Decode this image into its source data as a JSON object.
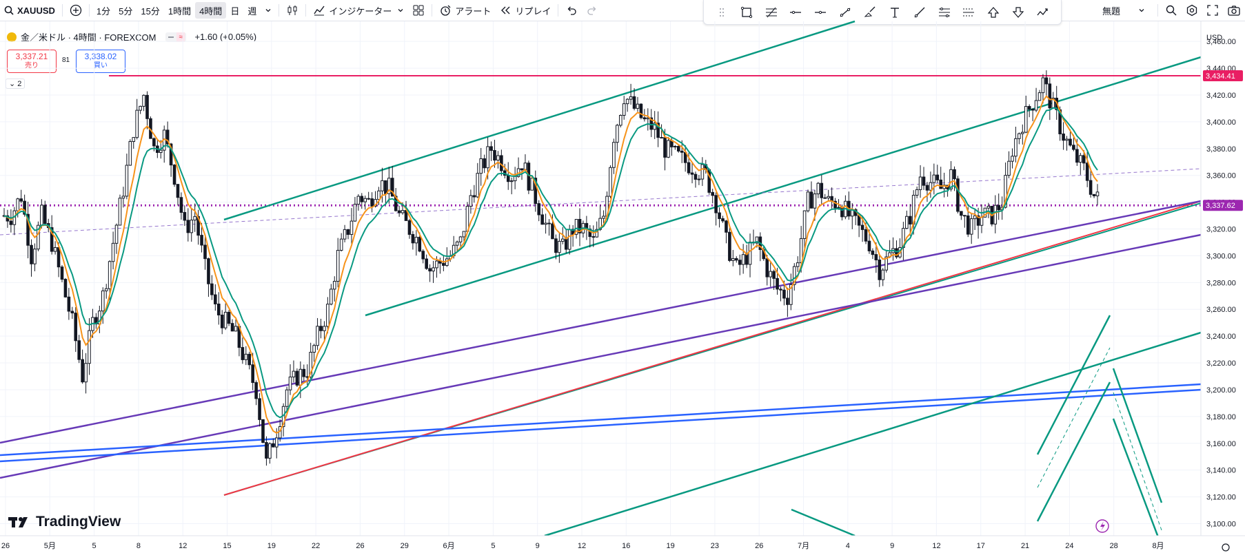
{
  "toolbar": {
    "symbol": "XAUUSD",
    "intervals": [
      "1分",
      "5分",
      "15分",
      "1時間",
      "4時間",
      "日",
      "週"
    ],
    "active_interval": "4時間",
    "indicators_label": "インジケーター",
    "alert_label": "アラート",
    "replay_label": "リプレイ",
    "unnamed_label": "無題"
  },
  "legend": {
    "title": "金／米ドル · 4時間 · FOREXCOM",
    "change": "+1.60 (+0.05%)",
    "sell_price": "3,337.21",
    "sell_label": "売り",
    "buy_price": "3,338.02",
    "buy_label": "買い",
    "spread": "81",
    "collapsed_count": "2"
  },
  "price_scale": {
    "currency": "USD",
    "current_price": "3,337.62",
    "resistance_label": "3,434.41"
  },
  "colors": {
    "up": "#131722",
    "down": "#131722",
    "ema_fast": "#f7931a",
    "ema_slow": "#089981",
    "channel": "#089981",
    "resistance": "#e91e63",
    "purple": "#673ab7",
    "blue": "#2962ff",
    "red": "#f23645",
    "price_label_bg": "#9c27b0"
  },
  "logo_text": "TradingView",
  "chart_data": {
    "type": "line",
    "title": "金／米ドル · 4時間 · FOREXCOM",
    "x_ticks": [
      "26",
      "5月",
      "5",
      "8",
      "12",
      "15",
      "19",
      "22",
      "26",
      "29",
      "6月",
      "5",
      "9",
      "12",
      "16",
      "19",
      "23",
      "26",
      "7月",
      "4",
      "9",
      "12",
      "17",
      "21",
      "24",
      "28",
      "8月"
    ],
    "y_ticks": [
      3100,
      3120,
      3140,
      3160,
      3180,
      3200,
      3220,
      3240,
      3260,
      3280,
      3300,
      3320,
      3340,
      3360,
      3380,
      3400,
      3420,
      3440,
      3460
    ],
    "ylim": [
      3091,
      3475
    ],
    "last_price": 3337.62,
    "resistance": 3434.41,
    "series": [
      {
        "values": [
          3330,
          3345,
          3300,
          3330,
          3310,
          3280,
          3250,
          3210,
          3250,
          3270,
          3310,
          3350,
          3395,
          3420,
          3380,
          3390,
          3360,
          3320,
          3330,
          3290,
          3260,
          3250,
          3240,
          3220,
          3200,
          3145,
          3170,
          3200,
          3210,
          3215,
          3240,
          3260,
          3300,
          3320,
          3345,
          3340,
          3355,
          3350,
          3330,
          3320,
          3310,
          3290,
          3295,
          3300,
          3310,
          3345,
          3365,
          3380,
          3370,
          3360,
          3370,
          3350,
          3330,
          3310,
          3305,
          3320,
          3320,
          3310,
          3330,
          3390,
          3420,
          3410,
          3400,
          3395,
          3380,
          3375,
          3370,
          3365,
          3360,
          3340,
          3310,
          3290,
          3300,
          3310,
          3290,
          3275,
          3270,
          3300,
          3340,
          3350,
          3340,
          3340,
          3330,
          3320,
          3310,
          3290,
          3300,
          3310,
          3330,
          3360,
          3355,
          3350,
          3360,
          3330,
          3320,
          3330,
          3330,
          3340,
          3380,
          3400,
          3415,
          3430,
          3410,
          3390,
          3375,
          3365,
          3345,
          3337
        ]
      }
    ]
  }
}
